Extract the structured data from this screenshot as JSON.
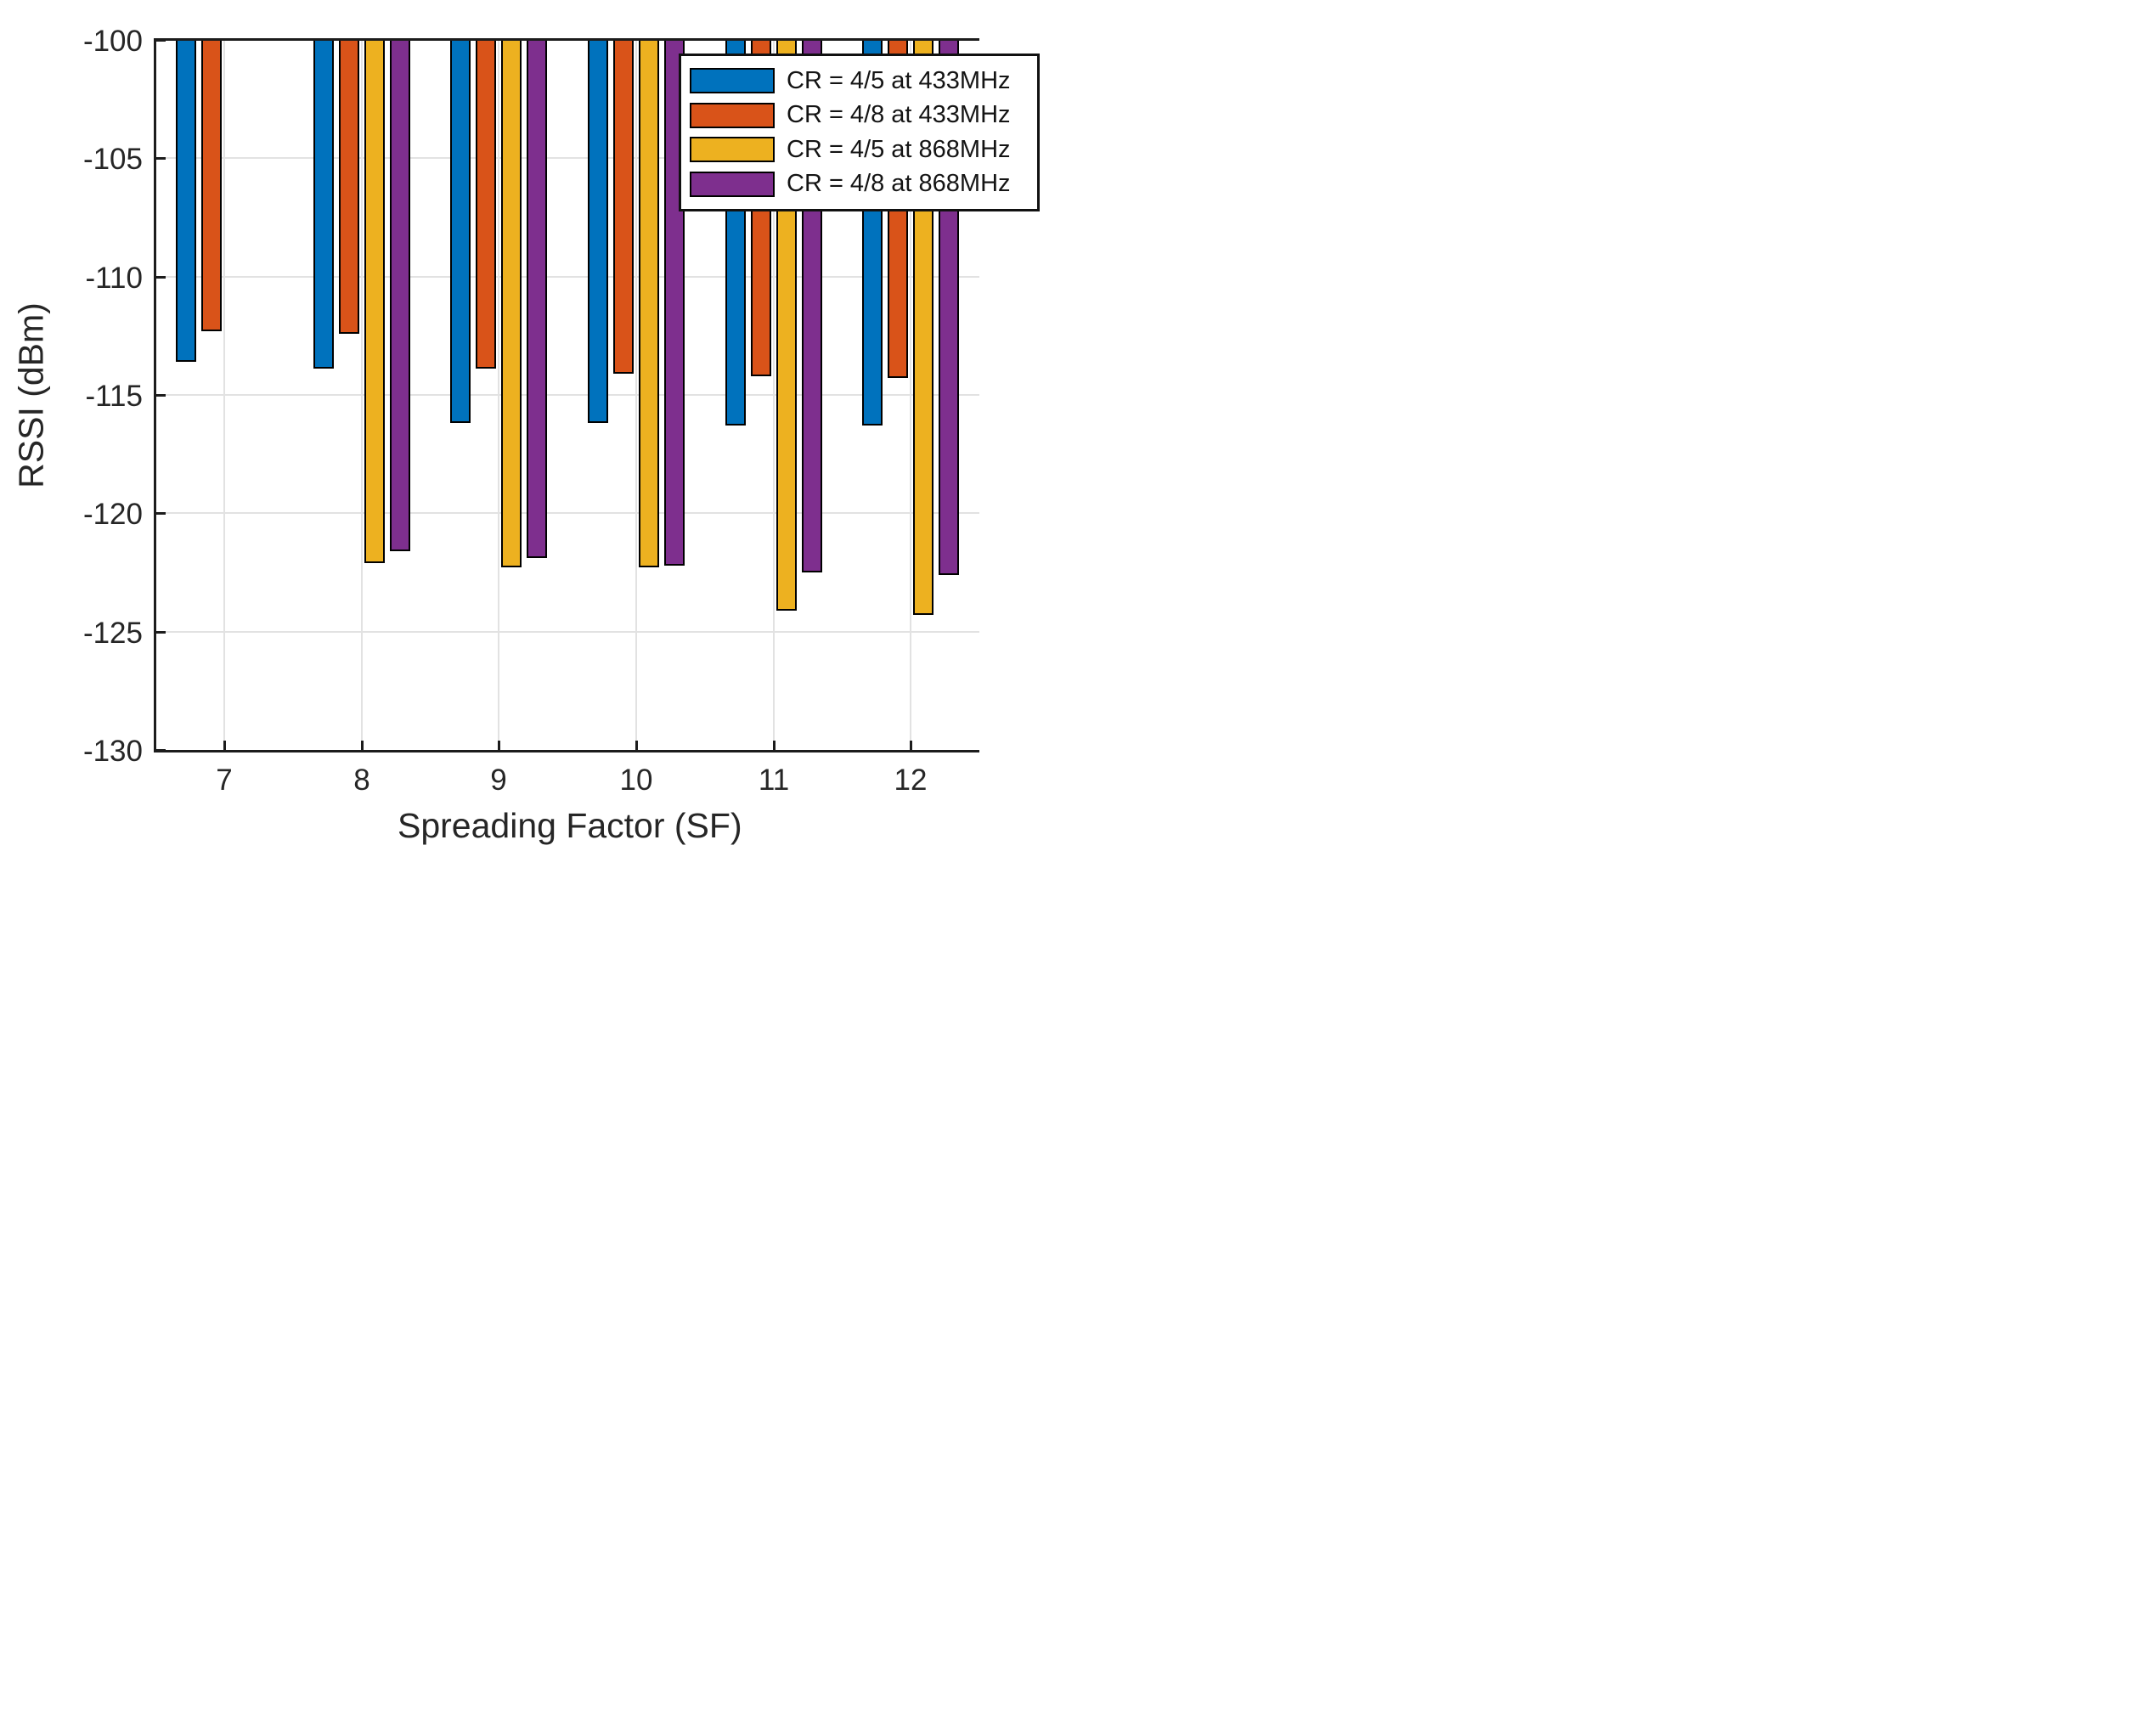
{
  "figure": {
    "background": "#ffffff",
    "axis_color": "#1c1c1c",
    "grid_color": "#e2e2e2",
    "text_color": "#262626"
  },
  "chart_data": {
    "type": "bar",
    "title": "",
    "xlabel": "Spreading Factor (SF)",
    "ylabel": "RSSI (dBm)",
    "categories": [
      7,
      8,
      9,
      10,
      11,
      12
    ],
    "xlim": [
      6.5,
      12.5
    ],
    "ylim": [
      -130,
      -100
    ],
    "yticks": [
      -100,
      -105,
      -110,
      -115,
      -120,
      -125,
      -130
    ],
    "xticks": [
      7,
      8,
      9,
      10,
      11,
      12
    ],
    "grid": true,
    "baseline_value": -100,
    "bar_edge_color": "#000000",
    "legend_position": "top-right-inside",
    "series": [
      {
        "name": "CR = 4/5 at 433MHz",
        "color": "#0072BD",
        "values": [
          -113.6,
          -113.9,
          -116.2,
          -116.2,
          -116.3,
          -116.3
        ]
      },
      {
        "name": "CR = 4/8 at 433MHz",
        "color": "#D95319",
        "values": [
          -112.3,
          -112.4,
          -113.9,
          -114.1,
          -114.2,
          -114.3
        ]
      },
      {
        "name": "CR = 4/5 at 868MHz",
        "color": "#EDB120",
        "values": [
          null,
          -122.1,
          -122.3,
          -122.3,
          -124.1,
          -124.3
        ]
      },
      {
        "name": "CR = 4/8 at 868MHz",
        "color": "#7E2F8E",
        "values": [
          null,
          -121.6,
          -121.9,
          -122.2,
          -122.5,
          -122.6
        ]
      }
    ]
  }
}
